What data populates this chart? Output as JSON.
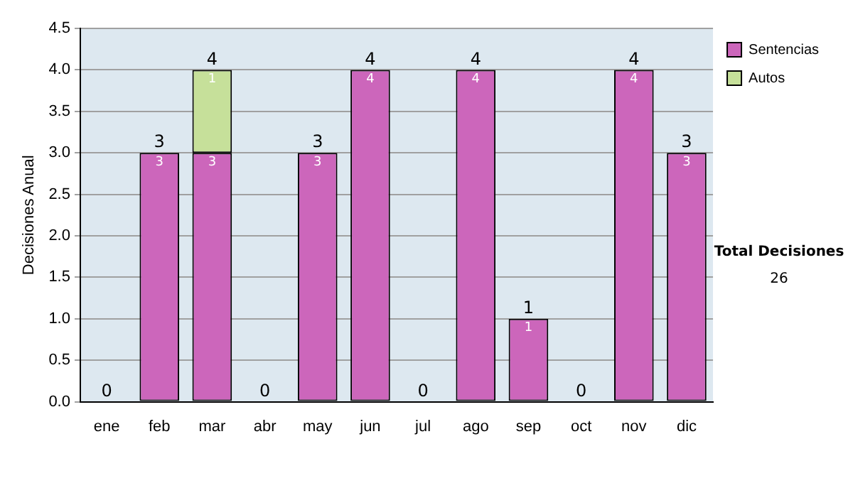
{
  "chart_data": {
    "type": "bar",
    "stacked": true,
    "ylabel": "Decisiones Anual",
    "categories": [
      "ene",
      "feb",
      "mar",
      "abr",
      "may",
      "jun",
      "jul",
      "ago",
      "sep",
      "oct",
      "nov",
      "dic"
    ],
    "series": [
      {
        "name": "Sentencias",
        "color": "#cc66bb",
        "values": [
          0,
          3,
          3,
          0,
          3,
          4,
          0,
          4,
          1,
          0,
          4,
          3
        ],
        "value_labels": [
          null,
          "3",
          "3",
          null,
          "3",
          "4",
          null,
          "4",
          "1",
          null,
          "4",
          "3"
        ]
      },
      {
        "name": "Autos",
        "color": "#c6e09a",
        "values": [
          0,
          0,
          1,
          0,
          0,
          0,
          0,
          0,
          0,
          0,
          0,
          0
        ],
        "value_labels": [
          null,
          null,
          "1",
          null,
          null,
          null,
          null,
          null,
          null,
          null,
          null,
          null
        ]
      }
    ],
    "totals": [
      "0",
      "3",
      "4",
      "0",
      "3",
      "4",
      "0",
      "4",
      "1",
      "0",
      "4",
      "3"
    ],
    "ylim": [
      0,
      4.5
    ],
    "yticks": [
      {
        "value": 0,
        "label": "0.0"
      },
      {
        "value": 0.5,
        "label": "0.5"
      },
      {
        "value": 1,
        "label": "1.0"
      },
      {
        "value": 1.5,
        "label": "1.5"
      },
      {
        "value": 2,
        "label": "2.0"
      },
      {
        "value": 2.5,
        "label": "2.5"
      },
      {
        "value": 3,
        "label": "3.0"
      },
      {
        "value": 3.5,
        "label": "3.5"
      },
      {
        "value": 4,
        "label": "4.0"
      },
      {
        "value": 4.5,
        "label": "4.5"
      }
    ],
    "grid": "y",
    "legend": "right",
    "annotations": [
      "Total Decisiones",
      "26"
    ]
  }
}
